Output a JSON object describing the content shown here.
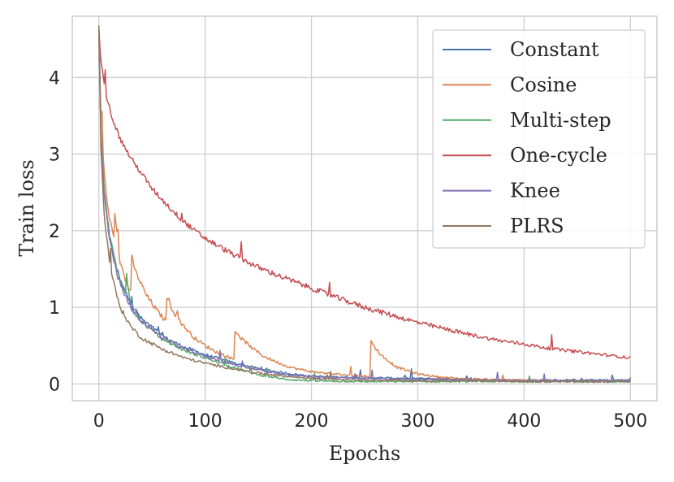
{
  "chart_data": {
    "type": "line",
    "title": "",
    "xlabel": "Epochs",
    "ylabel": "Train loss",
    "xlim": [
      -25,
      525
    ],
    "ylim": [
      -0.22,
      4.8
    ],
    "xticks": [
      0,
      100,
      200,
      300,
      400,
      500
    ],
    "yticks": [
      0,
      1,
      2,
      3,
      4
    ],
    "xtick_labels": [
      "0",
      "100",
      "200",
      "300",
      "400",
      "500"
    ],
    "ytick_labels": [
      "0",
      "1",
      "2",
      "3",
      "4"
    ],
    "grid": true,
    "legend_position": "top-right",
    "series": [
      {
        "name": "Constant",
        "color": "#4c72b0",
        "x": [
          0,
          2,
          5,
          10,
          15,
          20,
          30,
          40,
          60,
          80,
          100,
          125,
          150,
          175,
          200,
          250,
          300,
          350,
          400,
          450,
          500
        ],
        "values": [
          4.65,
          3.3,
          2.5,
          1.95,
          1.6,
          1.35,
          1.05,
          0.85,
          0.62,
          0.48,
          0.38,
          0.28,
          0.2,
          0.14,
          0.1,
          0.08,
          0.07,
          0.06,
          0.05,
          0.05,
          0.05
        ]
      },
      {
        "name": "Cosine",
        "color": "#dd8452",
        "x": [
          0,
          2,
          5,
          8,
          10,
          14,
          15,
          20,
          25,
          30,
          31,
          35,
          45,
          55,
          63,
          64,
          70,
          80,
          90,
          100,
          110,
          120,
          127,
          128,
          135,
          145,
          155,
          165,
          175,
          185,
          200,
          220,
          240,
          255,
          256,
          265,
          280,
          300,
          320,
          340,
          360,
          380,
          400,
          430,
          460,
          500
        ],
        "values": [
          4.65,
          3.5,
          2.75,
          2.35,
          2.15,
          1.95,
          2.2,
          1.6,
          1.35,
          1.2,
          1.65,
          1.45,
          1.15,
          0.95,
          0.82,
          1.15,
          0.95,
          0.75,
          0.6,
          0.5,
          0.42,
          0.36,
          0.32,
          0.7,
          0.58,
          0.46,
          0.36,
          0.3,
          0.24,
          0.2,
          0.16,
          0.13,
          0.11,
          0.1,
          0.55,
          0.38,
          0.22,
          0.13,
          0.09,
          0.07,
          0.06,
          0.05,
          0.05,
          0.04,
          0.04,
          0.04
        ]
      },
      {
        "name": "Multi-step",
        "color": "#55a868",
        "x": [
          0,
          2,
          5,
          10,
          15,
          20,
          25,
          26,
          30,
          40,
          60,
          80,
          100,
          125,
          150,
          175,
          200,
          250,
          300,
          350,
          400,
          450,
          500
        ],
        "values": [
          4.65,
          3.3,
          2.5,
          1.95,
          1.6,
          1.35,
          1.2,
          1.45,
          1.0,
          0.82,
          0.58,
          0.44,
          0.34,
          0.22,
          0.12,
          0.06,
          0.04,
          0.03,
          0.03,
          0.03,
          0.03,
          0.03,
          0.03
        ]
      },
      {
        "name": "One-cycle",
        "color": "#c44e52",
        "x": [
          0,
          2,
          5,
          10,
          15,
          20,
          30,
          40,
          50,
          60,
          70,
          80,
          90,
          100,
          125,
          150,
          175,
          200,
          225,
          250,
          275,
          300,
          325,
          350,
          375,
          400,
          425,
          450,
          475,
          500
        ],
        "values": [
          4.65,
          4.2,
          3.9,
          3.6,
          3.38,
          3.2,
          2.95,
          2.75,
          2.55,
          2.4,
          2.25,
          2.12,
          2.0,
          1.9,
          1.7,
          1.52,
          1.38,
          1.25,
          1.12,
          1.0,
          0.9,
          0.8,
          0.72,
          0.64,
          0.57,
          0.52,
          0.46,
          0.42,
          0.38,
          0.34
        ]
      },
      {
        "name": "Knee",
        "color": "#8172b3",
        "x": [
          0,
          2,
          5,
          10,
          15,
          20,
          30,
          40,
          60,
          80,
          100,
          125,
          150,
          175,
          200,
          250,
          300,
          350,
          400,
          450,
          500
        ],
        "values": [
          4.65,
          3.25,
          2.45,
          1.9,
          1.55,
          1.3,
          1.0,
          0.82,
          0.6,
          0.46,
          0.36,
          0.26,
          0.18,
          0.12,
          0.09,
          0.07,
          0.06,
          0.05,
          0.04,
          0.04,
          0.04
        ]
      },
      {
        "name": "PLRS",
        "color": "#937860",
        "x": [
          0,
          2,
          5,
          10,
          15,
          20,
          30,
          40,
          60,
          80,
          100,
          125,
          150,
          175,
          200,
          250,
          300,
          350,
          400,
          450,
          500
        ],
        "values": [
          4.65,
          3.1,
          2.2,
          1.6,
          1.25,
          1.0,
          0.75,
          0.6,
          0.45,
          0.34,
          0.27,
          0.2,
          0.14,
          0.1,
          0.07,
          0.05,
          0.04,
          0.04,
          0.03,
          0.03,
          0.03
        ]
      }
    ]
  }
}
